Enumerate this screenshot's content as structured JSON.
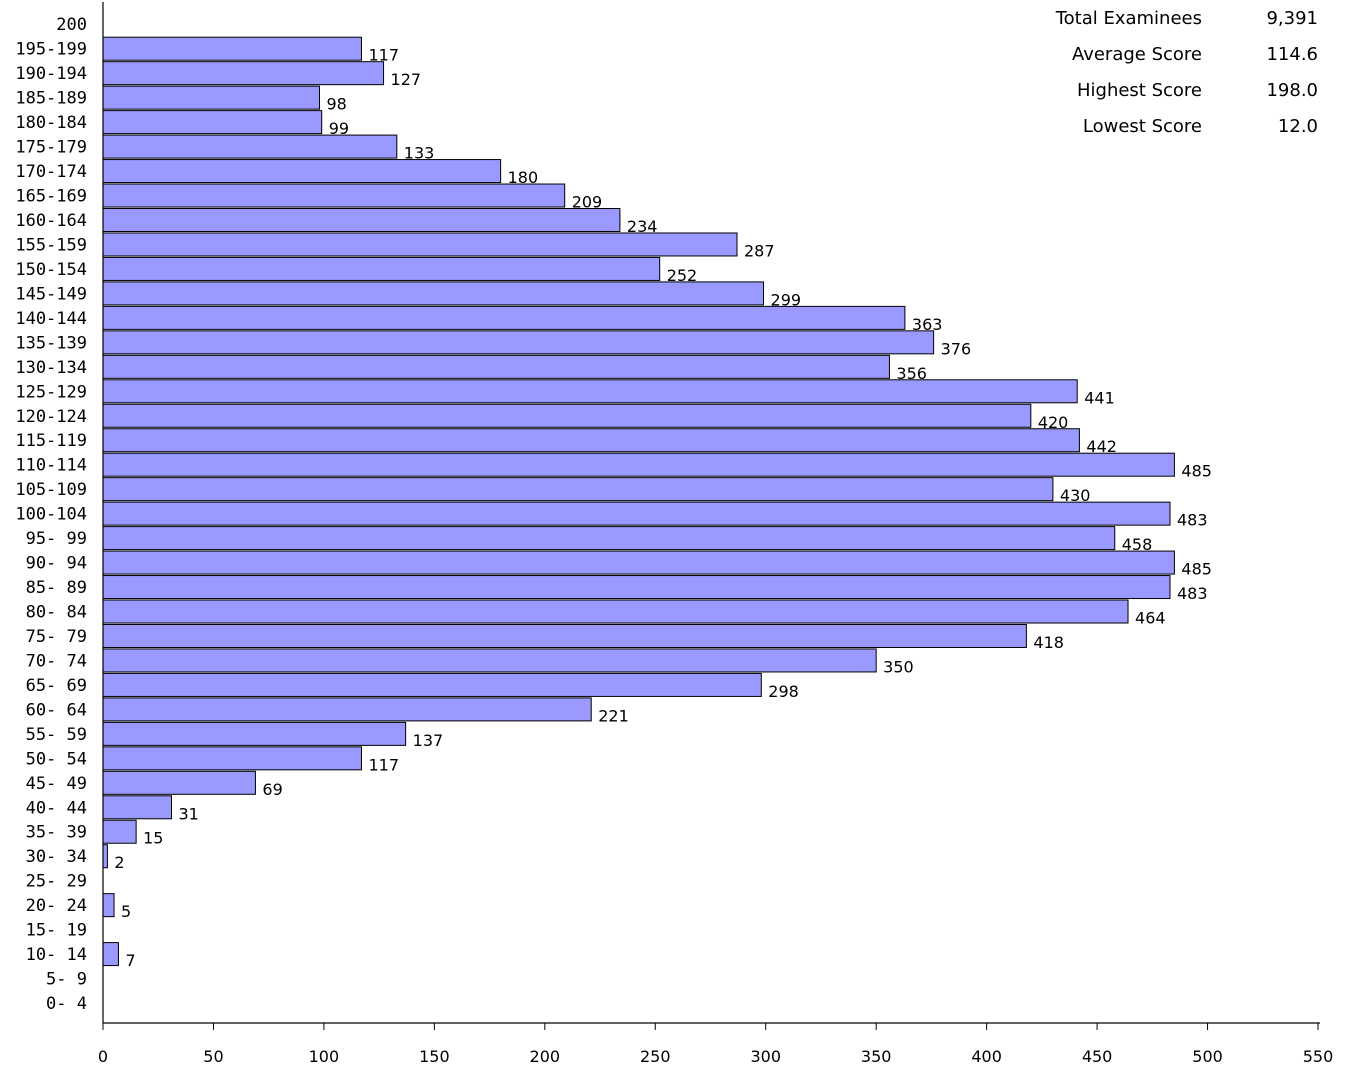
{
  "chart_data": {
    "type": "bar",
    "orientation": "horizontal",
    "categories": [
      "200",
      "195-199",
      "190-194",
      "185-189",
      "180-184",
      "175-179",
      "170-174",
      "165-169",
      "160-164",
      "155-159",
      "150-154",
      "145-149",
      "140-144",
      "135-139",
      "130-134",
      "125-129",
      "120-124",
      "115-119",
      "110-114",
      "105-109",
      "100-104",
      "95- 99",
      "90- 94",
      "85- 89",
      "80- 84",
      "75- 79",
      "70- 74",
      "65- 69",
      "60- 64",
      "55- 59",
      "50- 54",
      "45- 49",
      "40- 44",
      "35- 39",
      "30- 34",
      "25- 29",
      "20- 24",
      "15- 19",
      "10- 14",
      "5- 9",
      "0- 4"
    ],
    "values": [
      0,
      117,
      127,
      98,
      99,
      133,
      180,
      209,
      234,
      287,
      252,
      299,
      363,
      376,
      356,
      441,
      420,
      442,
      485,
      430,
      483,
      458,
      485,
      483,
      464,
      418,
      350,
      298,
      221,
      137,
      117,
      69,
      31,
      15,
      2,
      0,
      5,
      0,
      7,
      0,
      0
    ],
    "value_labels": [
      "",
      "117",
      "127",
      "98",
      "99",
      "133",
      "180",
      "209",
      "234",
      "287",
      "252",
      "299",
      "363",
      "376",
      "356",
      "441",
      "420",
      "442",
      "485",
      "430",
      "483",
      "458",
      "485",
      "483",
      "464",
      "418",
      "350",
      "298",
      "221",
      "137",
      "117",
      "69",
      "31",
      "15",
      "2",
      "",
      "5",
      "",
      "7",
      "",
      ""
    ],
    "xlim": [
      0,
      550
    ],
    "xticks": [
      0,
      50,
      100,
      150,
      200,
      250,
      300,
      350,
      400,
      450,
      500,
      550
    ],
    "xtick_labels": [
      "0",
      "50",
      "100",
      "150",
      "200",
      "250",
      "300",
      "350",
      "400",
      "450",
      "500",
      "550"
    ],
    "bar_color": "#9999ff",
    "bar_edge_color": "#000000",
    "grid": false,
    "title": "",
    "xlabel": "",
    "ylabel": ""
  },
  "stats": [
    {
      "label": "Total Examinees",
      "value": "9,391"
    },
    {
      "label": "Average Score",
      "value": "114.6"
    },
    {
      "label": "Highest Score",
      "value": "198.0"
    },
    {
      "label": "Lowest Score",
      "value": "12.0"
    }
  ]
}
